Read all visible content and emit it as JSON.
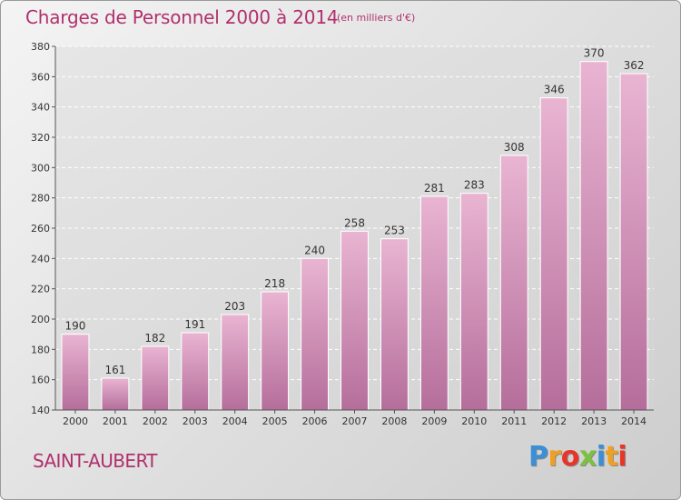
{
  "header": {
    "title": "Charges de Personnel 2000 à 2014",
    "subtitle": "(en milliers d'€)"
  },
  "footer": {
    "place": "SAINT-AUBERT",
    "logo_letters": [
      "P",
      "r",
      "o",
      "x",
      "i",
      "t",
      "i"
    ],
    "logo_colors": [
      "#3a8fd6",
      "#f0a020",
      "#e8352a",
      "#7cc142",
      "#3a8fd6",
      "#f0a020",
      "#e8352a"
    ]
  },
  "colors": {
    "bar_top": "#e9b4d2",
    "bar_bottom": "#b56e9b",
    "accent": "#b0306e"
  },
  "chart_data": {
    "type": "bar",
    "categories": [
      "2000",
      "2001",
      "2002",
      "2003",
      "2004",
      "2005",
      "2006",
      "2007",
      "2008",
      "2009",
      "2010",
      "2011",
      "2012",
      "2013",
      "2014"
    ],
    "values": [
      190,
      161,
      182,
      191,
      203,
      218,
      240,
      258,
      253,
      281,
      283,
      308,
      346,
      370,
      362
    ],
    "data_labels": [
      "190",
      "161",
      "182",
      "191",
      "203",
      "218",
      "240",
      "258",
      "253",
      "281",
      "283",
      "308",
      "346",
      "370",
      "362"
    ],
    "title": "Charges de Personnel 2000 à 2014",
    "ylim": [
      140,
      380
    ],
    "yticks": [
      140,
      160,
      180,
      200,
      220,
      240,
      260,
      280,
      300,
      320,
      340,
      360,
      380
    ],
    "ytick_labels": [
      "140",
      "160",
      "180",
      "200",
      "220",
      "240",
      "260",
      "280",
      "300",
      "320",
      "340",
      "360",
      "380"
    ],
    "grid": true,
    "legend": "none"
  }
}
